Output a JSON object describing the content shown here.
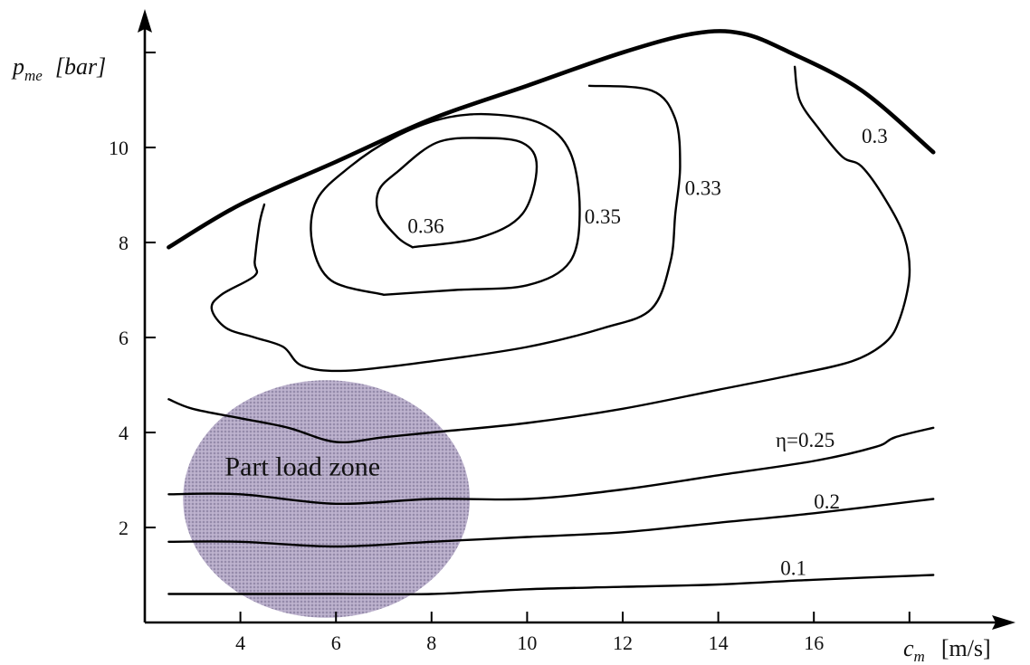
{
  "chart_data": {
    "type": "contour",
    "title": "",
    "xlabel": "c",
    "xlabel_sub": "m",
    "xunit": "[m/s]",
    "ylabel": "p",
    "ylabel_sub": "me",
    "yunit": "[bar]",
    "xlim": [
      2,
      20
    ],
    "ylim": [
      0,
      12
    ],
    "xticks": [
      4,
      6,
      8,
      10,
      12,
      14,
      16,
      18
    ],
    "xtick_labels": [
      "4",
      "6",
      "8",
      "10",
      "12",
      "14",
      "16",
      ""
    ],
    "yticks": [
      2,
      4,
      6,
      8,
      10,
      12
    ],
    "ytick_labels": [
      "2",
      "4",
      "6",
      "8",
      "10",
      ""
    ],
    "contours": [
      {
        "name": "full_load",
        "label": "",
        "thick": true,
        "points": [
          [
            2.5,
            7.9
          ],
          [
            4,
            8.8
          ],
          [
            6,
            9.7
          ],
          [
            8,
            10.6
          ],
          [
            10,
            11.3
          ],
          [
            12,
            12.0
          ],
          [
            13.5,
            12.4
          ],
          [
            14.5,
            12.4
          ],
          [
            15.5,
            12.0
          ],
          [
            17,
            11.2
          ],
          [
            18.5,
            9.9
          ]
        ],
        "label_pos": null
      },
      {
        "name": "eta_036",
        "label": "0.36",
        "thick": false,
        "points": [
          [
            7.6,
            7.9
          ],
          [
            9.0,
            8.1
          ],
          [
            9.9,
            8.6
          ],
          [
            10.2,
            9.6
          ],
          [
            9.9,
            10.1
          ],
          [
            9.0,
            10.2
          ],
          [
            8.1,
            10.1
          ],
          [
            7.3,
            9.5
          ],
          [
            6.9,
            9.1
          ],
          [
            6.9,
            8.6
          ],
          [
            7.3,
            8.1
          ],
          [
            7.6,
            7.9
          ]
        ],
        "label_pos": [
          7.5,
          8.2
        ]
      },
      {
        "name": "eta_035",
        "label": "0.35",
        "thick": false,
        "points": [
          [
            7.0,
            6.9
          ],
          [
            8.5,
            7.0
          ],
          [
            10,
            7.1
          ],
          [
            10.9,
            7.6
          ],
          [
            11.1,
            8.7
          ],
          [
            10.9,
            9.9
          ],
          [
            10.3,
            10.5
          ],
          [
            9.2,
            10.7
          ],
          [
            8.2,
            10.6
          ],
          [
            7.2,
            10.2
          ],
          [
            6.3,
            9.6
          ],
          [
            5.6,
            8.9
          ],
          [
            5.5,
            8.0
          ],
          [
            5.9,
            7.2
          ],
          [
            7.0,
            6.9
          ]
        ],
        "label_pos": [
          11.2,
          8.4
        ]
      },
      {
        "name": "eta_033",
        "label": "0.33",
        "thick": false,
        "points": [
          [
            11.3,
            11.3
          ],
          [
            12.6,
            11.2
          ],
          [
            13.1,
            10.6
          ],
          [
            13.2,
            9.6
          ],
          [
            13.1,
            8.6
          ],
          [
            13.0,
            7.6
          ],
          [
            12.6,
            6.6
          ],
          [
            11.6,
            6.2
          ],
          [
            10,
            5.8
          ],
          [
            8,
            5.5
          ],
          [
            6.2,
            5.3
          ],
          [
            5.3,
            5.4
          ],
          [
            4.9,
            5.8
          ],
          [
            4.3,
            6.0
          ],
          [
            3.7,
            6.2
          ],
          [
            3.4,
            6.6
          ],
          [
            3.6,
            6.9
          ],
          [
            4.3,
            7.3
          ],
          [
            4.3,
            7.6
          ],
          [
            4.4,
            8.4
          ],
          [
            4.5,
            8.8
          ]
        ],
        "label_pos": [
          13.3,
          9.0
        ]
      },
      {
        "name": "eta_030",
        "label": "0.3",
        "thick": false,
        "points": [
          [
            15.6,
            11.7
          ],
          [
            15.7,
            11.0
          ],
          [
            16.1,
            10.4
          ],
          [
            16.6,
            9.8
          ],
          [
            17.0,
            9.6
          ],
          [
            17.5,
            8.9
          ],
          [
            17.9,
            8.1
          ],
          [
            18.0,
            7.3
          ],
          [
            17.8,
            6.4
          ],
          [
            17.5,
            5.9
          ],
          [
            16.8,
            5.5
          ],
          [
            15.5,
            5.2
          ],
          [
            14,
            4.9
          ],
          [
            12,
            4.5
          ],
          [
            10,
            4.2
          ],
          [
            8,
            4.0
          ],
          [
            7,
            3.9
          ],
          [
            6,
            3.8
          ],
          [
            5,
            4.1
          ],
          [
            4,
            4.3
          ],
          [
            3,
            4.5
          ],
          [
            2.5,
            4.7
          ]
        ],
        "label_pos": [
          17.0,
          10.1
        ]
      },
      {
        "name": "eta_025",
        "label": "η=0.25",
        "thick": false,
        "points": [
          [
            2.5,
            2.7
          ],
          [
            4,
            2.7
          ],
          [
            6,
            2.5
          ],
          [
            8,
            2.6
          ],
          [
            10,
            2.6
          ],
          [
            12,
            2.8
          ],
          [
            14,
            3.1
          ],
          [
            16,
            3.4
          ],
          [
            17.3,
            3.7
          ],
          [
            17.7,
            3.9
          ],
          [
            18.5,
            4.1
          ]
        ],
        "label_pos": [
          15.2,
          3.7
        ]
      },
      {
        "name": "eta_020",
        "label": "0.2",
        "thick": false,
        "points": [
          [
            2.5,
            1.7
          ],
          [
            4,
            1.7
          ],
          [
            6,
            1.6
          ],
          [
            8,
            1.7
          ],
          [
            10,
            1.8
          ],
          [
            12,
            1.9
          ],
          [
            14,
            2.1
          ],
          [
            16,
            2.3
          ],
          [
            18.5,
            2.6
          ]
        ],
        "label_pos": [
          16.0,
          2.4
        ]
      },
      {
        "name": "eta_010",
        "label": "0.1",
        "thick": false,
        "points": [
          [
            2.5,
            0.6
          ],
          [
            4,
            0.6
          ],
          [
            6,
            0.6
          ],
          [
            8,
            0.6
          ],
          [
            10,
            0.7
          ],
          [
            12,
            0.75
          ],
          [
            14,
            0.8
          ],
          [
            16,
            0.9
          ],
          [
            18.5,
            1.0
          ]
        ],
        "label_pos": [
          15.3,
          1.0
        ]
      }
    ],
    "zone": {
      "label": "Part load zone",
      "center": [
        5.8,
        2.6
      ],
      "rx": 3.0,
      "ry": 2.5,
      "fill": "#b6abc8"
    }
  },
  "colors": {
    "background": "#ffffff",
    "ink": "#000000",
    "zone": "#b6abc8"
  }
}
